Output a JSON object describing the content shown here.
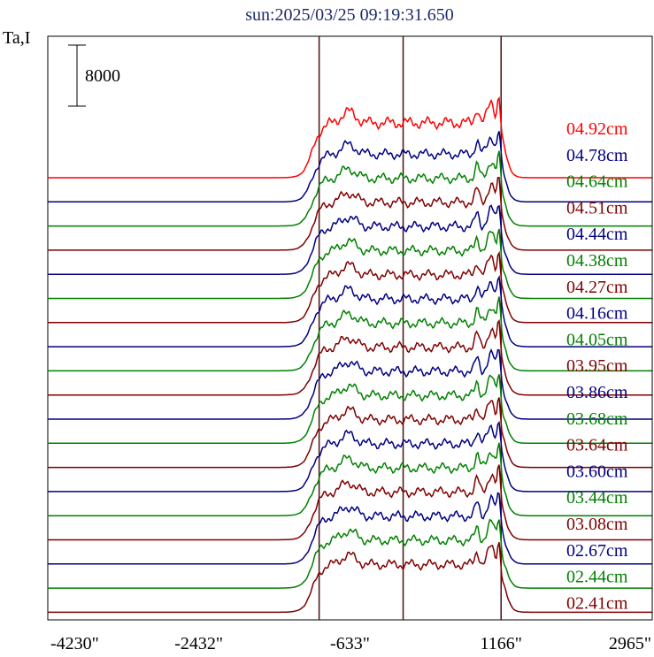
{
  "chart_data": {
    "type": "line",
    "title": "sun:2025/03/25 09:19:31.650",
    "ylabel": "Ta,I",
    "scale_bar_label": "8000",
    "x_ticks": [
      "-4230\"",
      "-2432\"",
      "-633\"",
      "1166\"",
      "2965\""
    ],
    "x_tick_values": [
      -4230,
      -2432,
      -633,
      1166,
      2965
    ],
    "xlim": [
      -4230,
      2965
    ],
    "markers": [
      -1000,
      0,
      1166
    ],
    "series": [
      {
        "name": "04.92cm",
        "color": "#ff0000"
      },
      {
        "name": "04.78cm",
        "color": "#000080"
      },
      {
        "name": "04.64cm",
        "color": "#008000"
      },
      {
        "name": "04.51cm",
        "color": "#800000"
      },
      {
        "name": "04.44cm",
        "color": "#000080"
      },
      {
        "name": "04.38cm",
        "color": "#008000"
      },
      {
        "name": "04.27cm",
        "color": "#800000"
      },
      {
        "name": "04.16cm",
        "color": "#000080"
      },
      {
        "name": "04.05cm",
        "color": "#008000"
      },
      {
        "name": "03.95cm",
        "color": "#800000"
      },
      {
        "name": "03.86cm",
        "color": "#000080"
      },
      {
        "name": "03.68cm",
        "color": "#008000"
      },
      {
        "name": "03.64cm",
        "color": "#800000"
      },
      {
        "name": "03.60cm",
        "color": "#000080"
      },
      {
        "name": "03.44cm",
        "color": "#008000"
      },
      {
        "name": "03.08cm",
        "color": "#800000"
      },
      {
        "name": "02.67cm",
        "color": "#000080"
      },
      {
        "name": "02.44cm",
        "color": "#008000"
      },
      {
        "name": "02.41cm",
        "color": "#800000"
      }
    ]
  }
}
